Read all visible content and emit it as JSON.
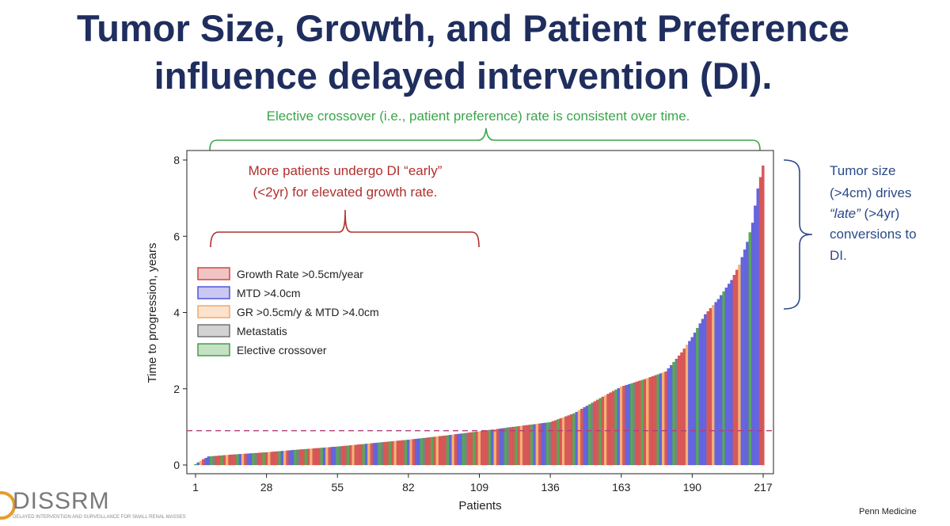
{
  "title": {
    "line1": "Tumor Size, Growth, and Patient Preference",
    "line2": "influence delayed intervention (DI)."
  },
  "annotations": {
    "elective": "Elective crossover (i.e., patient preference) rate is consistent over time.",
    "early_line1": "More patients undergo DI “early”",
    "early_line2": "(<2yr) for elevated growth rate.",
    "tumor_line1": "Tumor size",
    "tumor_line2": "(>4cm) drives",
    "tumor_line3_a": "“late”",
    "tumor_line3_b": " (>4yr)",
    "tumor_line4": "conversions to",
    "tumor_line5": "DI."
  },
  "colors": {
    "title": "#1f2e5e",
    "green_annotation": "#3aa64a",
    "red_annotation": "#b0302d",
    "blue_annotation": "#2b4a8a",
    "dashed_line": "#b0407a",
    "growth_rate": "#d03b3b",
    "mtd": "#4a4ad8",
    "gr_mtd": "#f2a35e",
    "metastasis": "#6a6a6a",
    "elective": "#3a9a3a"
  },
  "logo": {
    "name": "DISSRM",
    "subtitle": "DELAYED INTERVENTION AND SURVEILLANCE FOR SMALL RENAL MASSES"
  },
  "footer": "Penn Medicine",
  "chart_data": {
    "type": "bar",
    "xlabel": "Patients",
    "ylabel": "Time to progression, years",
    "x_ticks": [
      1,
      28,
      55,
      82,
      109,
      136,
      163,
      190,
      217
    ],
    "y_ticks": [
      0,
      2,
      4,
      6,
      8
    ],
    "xlim": [
      1,
      217
    ],
    "ylim": [
      0,
      8
    ],
    "reference_line_y": 0.9,
    "legend": [
      {
        "label": "Growth Rate >0.5cm/year",
        "key": "growth_rate"
      },
      {
        "label": "MTD >4.0cm",
        "key": "mtd"
      },
      {
        "label": "GR >0.5cm/y & MTD >4.0cm",
        "key": "gr_mtd"
      },
      {
        "label": " Metastatis",
        "key": "metastasis"
      },
      {
        "label": "Elective crossover",
        "key": "elective"
      }
    ],
    "legend_position": "left",
    "value_anchors": [
      [
        1,
        0.02
      ],
      [
        4,
        0.15
      ],
      [
        6,
        0.22
      ],
      [
        15,
        0.27
      ],
      [
        28,
        0.33
      ],
      [
        40,
        0.4
      ],
      [
        55,
        0.48
      ],
      [
        70,
        0.58
      ],
      [
        82,
        0.66
      ],
      [
        95,
        0.76
      ],
      [
        109,
        0.88
      ],
      [
        120,
        0.98
      ],
      [
        136,
        1.12
      ],
      [
        145,
        1.35
      ],
      [
        155,
        1.75
      ],
      [
        163,
        2.05
      ],
      [
        172,
        2.25
      ],
      [
        180,
        2.45
      ],
      [
        186,
        2.95
      ],
      [
        190,
        3.35
      ],
      [
        195,
        3.95
      ],
      [
        200,
        4.35
      ],
      [
        205,
        4.85
      ],
      [
        208,
        5.25
      ],
      [
        211,
        5.85
      ],
      [
        213,
        6.35
      ],
      [
        215,
        7.25
      ],
      [
        217,
        7.85
      ]
    ],
    "category_pattern": [
      "growth_rate",
      "elective",
      "growth_rate",
      "mtd",
      "growth_rate",
      "gr_mtd",
      "growth_rate",
      "elective",
      "metastasis",
      "growth_rate",
      "mtd",
      "gr_mtd",
      "growth_rate",
      "elective",
      "mtd",
      "growth_rate"
    ],
    "late_category_pattern": [
      "mtd",
      "mtd",
      "growth_rate",
      "mtd",
      "elective",
      "mtd",
      "gr_mtd",
      "mtd",
      "mtd",
      "growth_rate"
    ]
  }
}
